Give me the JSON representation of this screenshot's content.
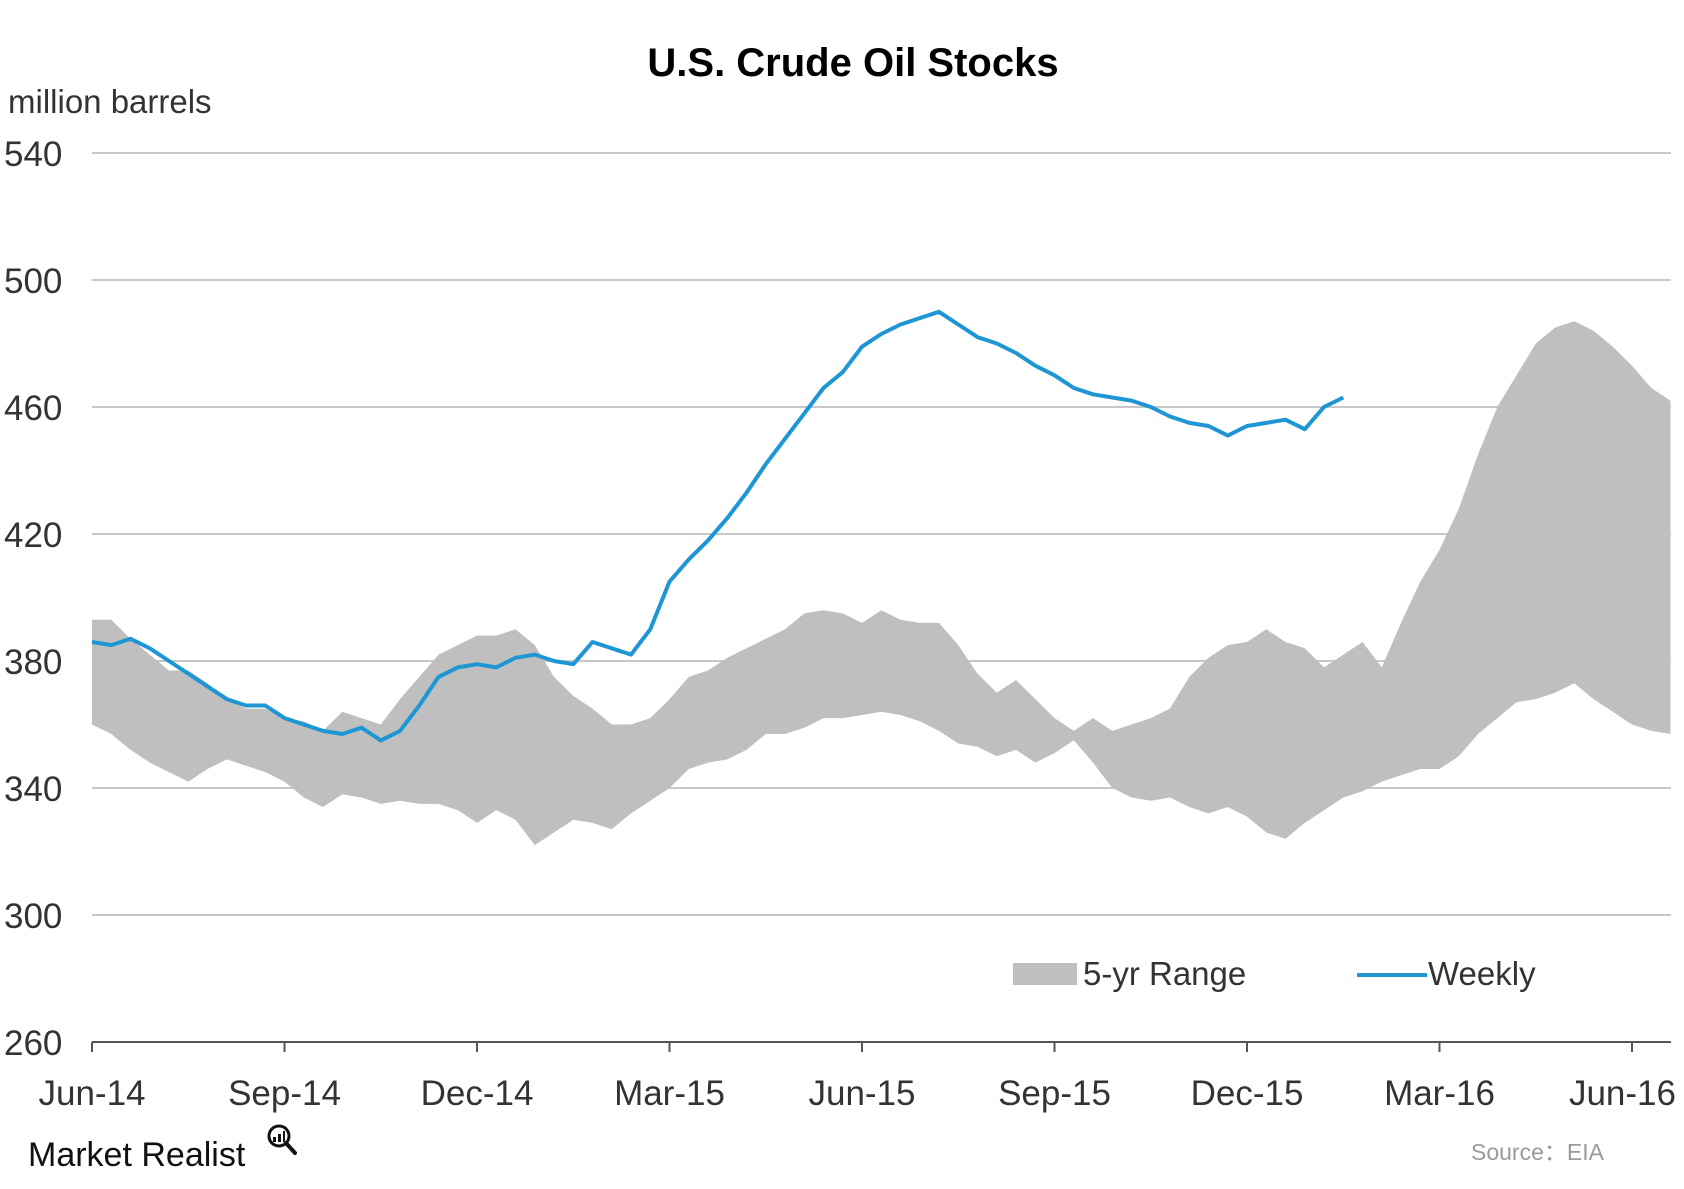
{
  "chart_data": {
    "type": "area",
    "title": "U.S. Crude Oil Stocks",
    "ylabel": "million barrels",
    "ylim": [
      260,
      540
    ],
    "y_ticks": [
      "540",
      "500",
      "460",
      "420",
      "380",
      "340",
      "300",
      "260"
    ],
    "x_tick_labels": [
      "Jun-14",
      "Sep-14",
      "Dec-14",
      "Mar-15",
      "Jun-15",
      "Sep-15",
      "Dec-15",
      "Mar-16",
      "Jun-16"
    ],
    "grid": true,
    "legend_position": "bottom-right",
    "series": [
      {
        "name": "5-yr Range",
        "kind": "range-band",
        "color": "#bfbfbf",
        "x": [
          0,
          0.3,
          0.6,
          0.9,
          1.2,
          1.5,
          1.8,
          2.1,
          2.4,
          2.7,
          3,
          3.3,
          3.6,
          3.9,
          4.2,
          4.5,
          4.8,
          5.1,
          5.4,
          5.7,
          6,
          6.3,
          6.6,
          6.9,
          7.2,
          7.5,
          7.8,
          8.1,
          8.4,
          8.7,
          9,
          9.3,
          9.6,
          9.9,
          10.2,
          10.5,
          10.8,
          11.1,
          11.4,
          11.7,
          12,
          12.3,
          12.6,
          12.9,
          13.2,
          13.5,
          13.8,
          14.1,
          14.4,
          14.7,
          15,
          15.3,
          15.6,
          15.9,
          16.2,
          16.5,
          16.8,
          17.1,
          17.4,
          17.7,
          18,
          18.3,
          18.6,
          18.9,
          19.2,
          19.5,
          19.8,
          20.1,
          20.4,
          20.7,
          21,
          21.3,
          21.6,
          21.9,
          22.2,
          22.5,
          22.8,
          23.1,
          23.4,
          23.7,
          24,
          24.3,
          24.6
        ],
        "upper": [
          393,
          393,
          387,
          382,
          377,
          377,
          373,
          368,
          365,
          365,
          362,
          361,
          358,
          364,
          362,
          360,
          368,
          375,
          382,
          385,
          388,
          388,
          390,
          385,
          375,
          369,
          365,
          360,
          360,
          362,
          368,
          375,
          377,
          381,
          384,
          387,
          390,
          395,
          396,
          395,
          392,
          396,
          393,
          392,
          392,
          385,
          376,
          370,
          374,
          368,
          362,
          358,
          362,
          358,
          360,
          362,
          365,
          375,
          381,
          385,
          386,
          390,
          386,
          384,
          378,
          382,
          386,
          378,
          392,
          405,
          415,
          428,
          445,
          460,
          470,
          480,
          485,
          487,
          484,
          479,
          473,
          466,
          462
        ],
        "lower": [
          360,
          357,
          352,
          348,
          345,
          342,
          346,
          349,
          347,
          345,
          342,
          337,
          334,
          338,
          337,
          335,
          336,
          335,
          335,
          333,
          329,
          333,
          330,
          322,
          326,
          330,
          329,
          327,
          332,
          336,
          340,
          346,
          348,
          349,
          352,
          357,
          357,
          359,
          362,
          362,
          363,
          364,
          363,
          361,
          358,
          354,
          353,
          350,
          352,
          348,
          351,
          355,
          348,
          340,
          337,
          336,
          337,
          334,
          332,
          334,
          331,
          326,
          324,
          329,
          333,
          337,
          339,
          342,
          344,
          346,
          346,
          350,
          357,
          362,
          367,
          368,
          370,
          373,
          368,
          364,
          360,
          358,
          357
        ]
      },
      {
        "name": "Weekly",
        "kind": "line",
        "color": "#1f96d4",
        "x": [
          0,
          0.3,
          0.6,
          0.9,
          1.2,
          1.5,
          1.8,
          2.1,
          2.4,
          2.7,
          3,
          3.3,
          3.6,
          3.9,
          4.2,
          4.5,
          4.8,
          5.1,
          5.4,
          5.7,
          6,
          6.3,
          6.6,
          6.9,
          7.2,
          7.5,
          7.8,
          8.1,
          8.4,
          8.7,
          9,
          9.3,
          9.6,
          9.9,
          10.2,
          10.5,
          10.8,
          11.1,
          11.4,
          11.7,
          12,
          12.3,
          12.6,
          12.9,
          13.2,
          13.5,
          13.8,
          14.1,
          14.4,
          14.7,
          15,
          15.3,
          15.6,
          15.9,
          16.2,
          16.5,
          16.8,
          17.1,
          17.4,
          17.7,
          18,
          18.3,
          18.6,
          18.9,
          19.2,
          19.5
        ],
        "values": [
          386,
          385,
          387,
          384,
          380,
          376,
          372,
          368,
          366,
          366,
          362,
          360,
          358,
          357,
          359,
          355,
          358,
          366,
          375,
          378,
          379,
          378,
          381,
          382,
          380,
          379,
          386,
          384,
          382,
          390,
          405,
          412,
          418,
          425,
          433,
          442,
          450,
          458,
          466,
          471,
          479,
          483,
          486,
          488,
          490,
          486,
          482,
          480,
          477,
          473,
          470,
          466,
          464,
          463,
          462,
          460,
          457,
          455,
          454,
          451,
          454,
          455,
          456,
          453,
          460,
          463
        ]
      }
    ]
  },
  "legend": {
    "range_label": "5-yr Range",
    "weekly_label": "Weekly"
  },
  "footer": {
    "brand": "Market Realist",
    "source": "Source：EIA"
  },
  "colors": {
    "range_fill": "#bfbfbf",
    "weekly_line": "#1f96d4",
    "grid": "#c8c8c8",
    "axis": "#555555"
  }
}
